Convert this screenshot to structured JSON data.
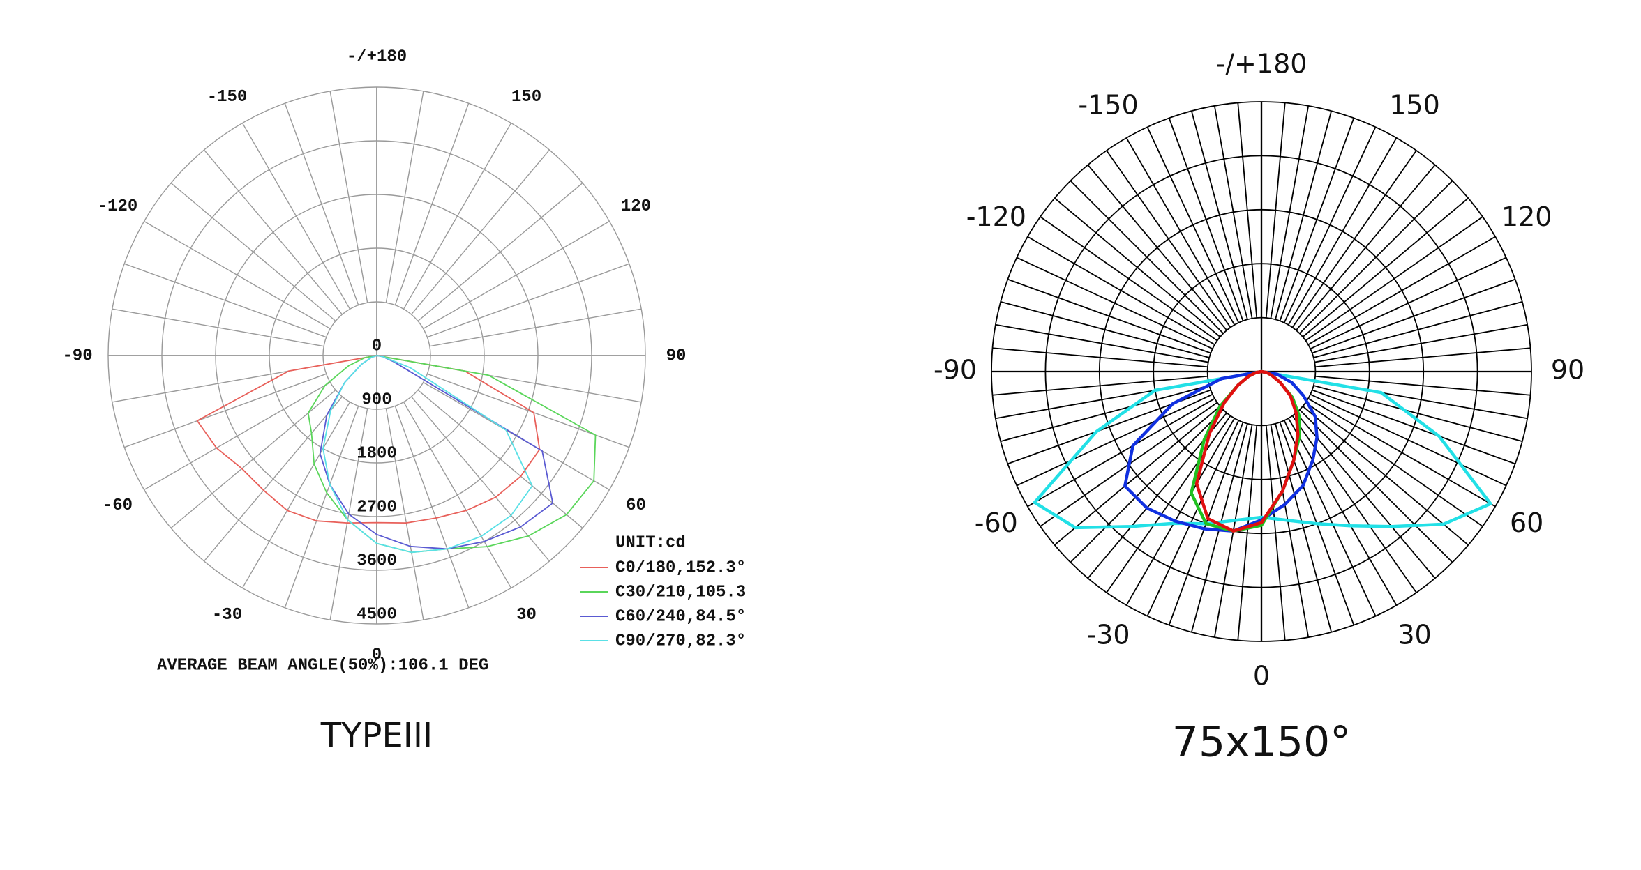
{
  "chart_data": [
    {
      "type": "polar",
      "caption": "TYPEIII",
      "legend_title": "UNIT:cd",
      "footer": "AVERAGE BEAM ANGLE(50%):106.1 DEG",
      "angles": [
        -90,
        -80,
        -70,
        -60,
        -50,
        -40,
        -30,
        -20,
        -10,
        0,
        10,
        20,
        30,
        40,
        50,
        60,
        70,
        80,
        90
      ],
      "angle_ticks": [
        {
          "value": 180,
          "label": "-/+180"
        },
        -150,
        150,
        -120,
        120,
        -90,
        90,
        -60,
        60,
        -30,
        30,
        0
      ],
      "angle_grid_step": 10,
      "rlim": [
        0,
        4500
      ],
      "rticks": [
        0,
        900,
        1800,
        2700,
        3600,
        4500
      ],
      "grid_color": "#9a9a9a",
      "series": [
        {
          "name": "C0/180,152.3°",
          "color": "#e8605a",
          "values": [
            0,
            1500,
            3200,
            3100,
            2950,
            2950,
            3000,
            2950,
            2850,
            2800,
            2850,
            2900,
            3000,
            3100,
            3150,
            3150,
            2800,
            1500,
            0
          ]
        },
        {
          "name": "C30/210,105.3",
          "color": "#5ad65a",
          "values": [
            0,
            200,
            500,
            1000,
            1500,
            1700,
            2100,
            2450,
            2800,
            3150,
            3350,
            3450,
            3700,
            3950,
            4150,
            4200,
            3900,
            1900,
            0
          ]
        },
        {
          "name": "C60/240,84.5°",
          "color": "#5a5ad2",
          "values": [
            0,
            0,
            100,
            300,
            700,
            1300,
            1900,
            2300,
            2700,
            3000,
            3250,
            3450,
            3600,
            3750,
            3850,
            3200,
            300,
            100,
            0
          ]
        },
        {
          "name": "C90/270,82.3°",
          "color": "#5ae0e6",
          "values": [
            0,
            0,
            100,
            300,
            700,
            1200,
            1800,
            2300,
            2800,
            3150,
            3350,
            3450,
            3500,
            3500,
            3400,
            2500,
            600,
            100,
            0
          ]
        }
      ]
    },
    {
      "type": "polar",
      "caption": "75x150°",
      "angles": [
        -90,
        -80,
        -70,
        -60,
        -50,
        -40,
        -30,
        -20,
        -10,
        0,
        10,
        20,
        30,
        40,
        50,
        60,
        70,
        80,
        90
      ],
      "angle_ticks": [
        {
          "value": 180,
          "label": "-/+180"
        },
        -150,
        150,
        -120,
        120,
        -90,
        90,
        -60,
        60,
        -30,
        30,
        0
      ],
      "angle_grid_step": 5,
      "rlim": [
        0,
        1
      ],
      "rgrid": [
        0.2,
        0.4,
        0.6,
        0.8,
        1
      ],
      "grid_color": "#000000",
      "series": [
        {
          "color": "#22e0e6",
          "values": [
            0,
            0.4,
            0.65,
            0.97,
            0.9,
            0.75,
            0.65,
            0.6,
            0.56,
            0.54,
            0.56,
            0.6,
            0.66,
            0.75,
            0.88,
            0.98,
            0.7,
            0.45,
            0
          ]
        },
        {
          "color": "#1030e0",
          "values": [
            0,
            0.15,
            0.35,
            0.55,
            0.66,
            0.66,
            0.64,
            0.62,
            0.6,
            0.55,
            0.5,
            0.45,
            0.38,
            0.32,
            0.26,
            0.18,
            0.12,
            0.06,
            0
          ]
        },
        {
          "color": "#20c020",
          "values": [
            0,
            0.02,
            0.05,
            0.1,
            0.2,
            0.33,
            0.52,
            0.6,
            0.6,
            0.57,
            0.45,
            0.35,
            0.28,
            0.22,
            0.15,
            0.08,
            0.04,
            0.02,
            0
          ]
        },
        {
          "color": "#e01010",
          "values": [
            0,
            0.02,
            0.05,
            0.1,
            0.18,
            0.3,
            0.48,
            0.58,
            0.6,
            0.56,
            0.45,
            0.35,
            0.27,
            0.2,
            0.14,
            0.08,
            0.04,
            0.02,
            0
          ]
        }
      ]
    }
  ]
}
